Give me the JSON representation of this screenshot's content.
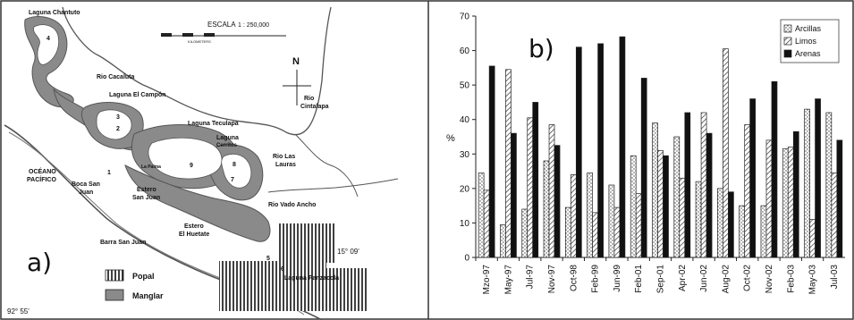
{
  "map": {
    "panel_label": "a)",
    "places": {
      "chantuto": "Laguna Chantuto",
      "cacaluta": "Rio Cacaluta",
      "campon": "Laguna El Campón",
      "teculapa": "Laguna Teculapa",
      "cerritos1": "Laguna",
      "cerritos2": "Cerritos",
      "lauras1": "Rio Las",
      "lauras2": "Lauras",
      "cintalapa1": "Rio",
      "cintalapa2": "Cintalapa",
      "oceano1": "OCÉANO",
      "oceano2": "PACÍFICO",
      "boca1": "Boca San",
      "boca2": "Juan",
      "estero_sj1": "Estero",
      "estero_sj2": "San Juan",
      "panales": "La Palma",
      "vado": "Rio Vado Ancho",
      "huetate1": "Estero",
      "huetate2": "El Huetate",
      "barra": "Barra San Juan",
      "panzacola": "Laguna Panzacola",
      "lat": "15° 09'",
      "lon": "92° 55'"
    },
    "station_numbers": [
      "1",
      "2",
      "3",
      "4",
      "5",
      "6",
      "7",
      "8",
      "9"
    ],
    "scale": {
      "label": "ESCALA",
      "value": "1 : 250,000",
      "unit": "KILOMETERS"
    },
    "north": "N",
    "legend": [
      {
        "label": "Popal",
        "pattern": "vertical-stripes"
      },
      {
        "label": "Manglar",
        "fill": "#888888"
      }
    ],
    "colors": {
      "mangrove": "#8a8a8a",
      "water": "#ffffff",
      "line": "#555555"
    }
  },
  "chart_data": {
    "panel_label": "b)",
    "type": "bar",
    "ylabel": "%",
    "ylim": [
      0,
      70
    ],
    "yticks": [
      0,
      10,
      20,
      30,
      40,
      50,
      60,
      70
    ],
    "categories": [
      "Mzo-97",
      "May-97",
      "Jul-97",
      "Nov-97",
      "Oct-98",
      "Feb-99",
      "Jun-99",
      "Feb-01",
      "Sep-01",
      "Apr-02",
      "Jun-02",
      "Aug-02",
      "Oct-02",
      "Nov-02",
      "Feb-03",
      "May-03",
      "Jul-03"
    ],
    "series": [
      {
        "name": "Arcillas",
        "pattern": "dotted",
        "values": [
          24.5,
          9.5,
          14,
          28,
          14.5,
          24.5,
          21,
          29.5,
          39,
          35,
          22,
          20,
          15,
          15,
          31.5,
          43,
          42
        ]
      },
      {
        "name": "Limos",
        "pattern": "hatched",
        "values": [
          19.5,
          54.5,
          40.5,
          38.5,
          24,
          13,
          14.5,
          18.5,
          31,
          23,
          42,
          60.5,
          38.5,
          34,
          32,
          11,
          24.5
        ]
      },
      {
        "name": "Arenas",
        "pattern": "solid",
        "color": "#111111",
        "values": [
          55.5,
          36,
          45,
          32.5,
          61,
          62,
          64,
          52,
          29.5,
          42,
          36,
          19,
          46,
          51,
          36.5,
          46,
          34
        ]
      }
    ],
    "legend_position": "top-right",
    "grid": false
  }
}
